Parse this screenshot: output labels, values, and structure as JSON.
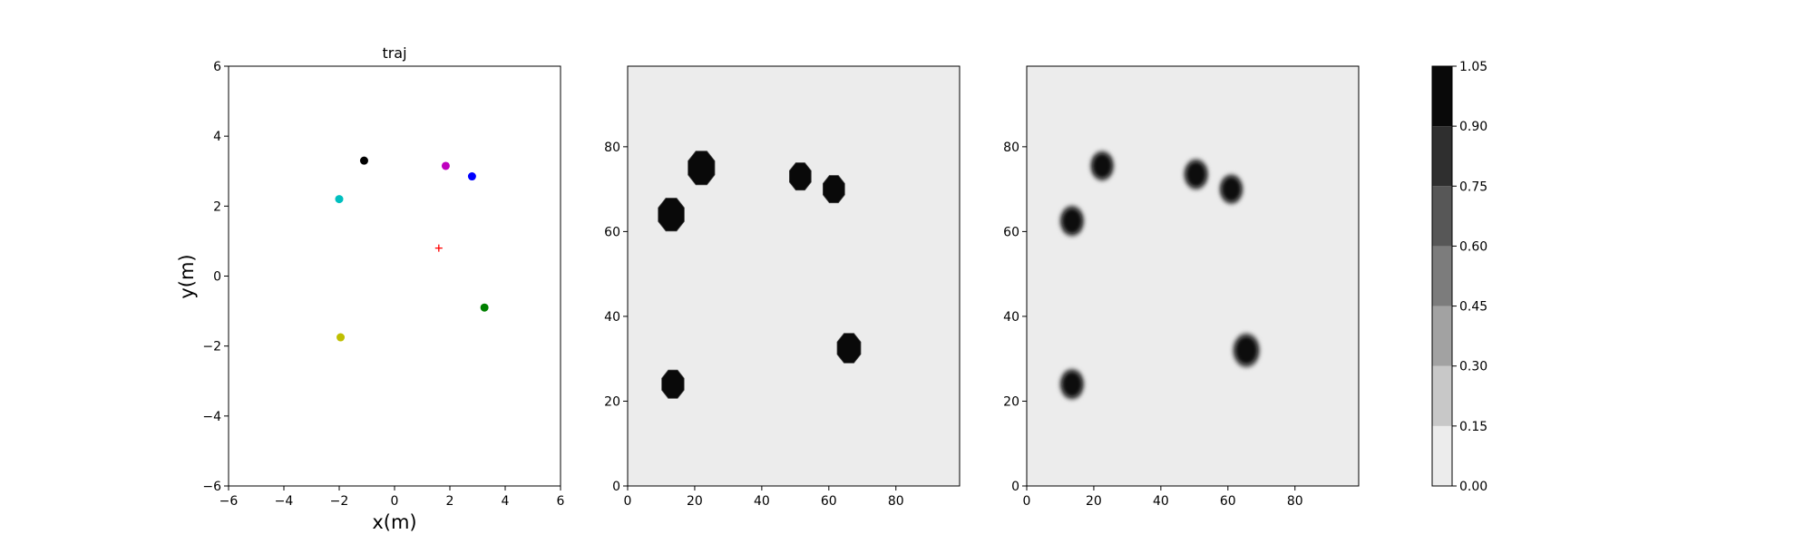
{
  "chart_data": [
    {
      "type": "scatter",
      "title": "traj",
      "xlabel": "x(m)",
      "ylabel": "y(m)",
      "xlim": [
        -6,
        6
      ],
      "ylim": [
        -6,
        6
      ],
      "xticks": [
        -6,
        -4,
        -2,
        0,
        2,
        4,
        6
      ],
      "yticks": [
        -6,
        -4,
        -2,
        0,
        2,
        4,
        6
      ],
      "xtick_labels": [
        "−6",
        "−4",
        "−2",
        "0",
        "2",
        "4",
        "6"
      ],
      "ytick_labels": [
        "−6",
        "−4",
        "−2",
        "0",
        "2",
        "4",
        "6"
      ],
      "grid": false,
      "points": [
        {
          "x": -1.1,
          "y": 3.3,
          "color": "#000000"
        },
        {
          "x": 1.85,
          "y": 3.15,
          "color": "#bf00bf"
        },
        {
          "x": 2.8,
          "y": 2.85,
          "color": "#0000ff"
        },
        {
          "x": -2.0,
          "y": 2.2,
          "color": "#00bfbf"
        },
        {
          "x": 3.25,
          "y": -0.9,
          "color": "#008000"
        },
        {
          "x": -1.95,
          "y": -1.75,
          "color": "#bfbf00"
        }
      ],
      "markers": [
        {
          "x": 1.6,
          "y": 0.8,
          "shape": "plus",
          "color": "#ff0000"
        }
      ]
    },
    {
      "type": "heatmap",
      "xlim": [
        0,
        99
      ],
      "ylim": [
        0,
        99
      ],
      "xticks": [
        0,
        20,
        40,
        60,
        80
      ],
      "yticks": [
        0,
        20,
        40,
        60,
        80
      ],
      "xtick_labels": [
        "0",
        "20",
        "40",
        "60",
        "80"
      ],
      "ytick_labels": [
        "0",
        "20",
        "40",
        "60",
        "80"
      ],
      "background_level": 0.05,
      "blobs": [
        {
          "x": 22,
          "y": 75,
          "r": 4.3,
          "level": 1.0,
          "soft": false
        },
        {
          "x": 13,
          "y": 64,
          "r": 4.2,
          "level": 1.0,
          "soft": false
        },
        {
          "x": 51.5,
          "y": 73,
          "r": 3.5,
          "level": 1.0,
          "soft": false
        },
        {
          "x": 61.5,
          "y": 70,
          "r": 3.5,
          "level": 1.0,
          "soft": false
        },
        {
          "x": 66,
          "y": 32.5,
          "r": 3.8,
          "level": 1.0,
          "soft": false
        },
        {
          "x": 13.5,
          "y": 24,
          "r": 3.6,
          "level": 1.0,
          "soft": false
        }
      ]
    },
    {
      "type": "heatmap",
      "xlim": [
        0,
        99
      ],
      "ylim": [
        0,
        99
      ],
      "xticks": [
        0,
        20,
        40,
        60,
        80
      ],
      "yticks": [
        0,
        20,
        40,
        60,
        80
      ],
      "xtick_labels": [
        "0",
        "20",
        "40",
        "60",
        "80"
      ],
      "ytick_labels": [
        "0",
        "20",
        "40",
        "60",
        "80"
      ],
      "background_level": 0.05,
      "blobs": [
        {
          "x": 22.5,
          "y": 75.5,
          "r": 3.5,
          "level": 1.0,
          "soft": true
        },
        {
          "x": 13.5,
          "y": 62.5,
          "r": 3.6,
          "level": 1.0,
          "soft": true
        },
        {
          "x": 50.5,
          "y": 73.5,
          "r": 3.6,
          "level": 1.0,
          "soft": true
        },
        {
          "x": 61,
          "y": 70,
          "r": 3.5,
          "level": 1.0,
          "soft": true
        },
        {
          "x": 65.5,
          "y": 32,
          "r": 4.0,
          "level": 1.0,
          "soft": true
        },
        {
          "x": 13.5,
          "y": 24,
          "r": 3.6,
          "level": 1.0,
          "soft": true
        }
      ]
    }
  ],
  "colorbar": {
    "levels": [
      0.0,
      0.15,
      0.3,
      0.45,
      0.6,
      0.75,
      0.9,
      1.05
    ],
    "labels": [
      "0.00",
      "0.15",
      "0.30",
      "0.45",
      "0.60",
      "0.75",
      "0.90",
      "1.05"
    ],
    "colors": [
      "#ececec",
      "#c8c8c8",
      "#a2a2a2",
      "#7c7c7c",
      "#575757",
      "#2f2f2f",
      "#090909"
    ]
  }
}
